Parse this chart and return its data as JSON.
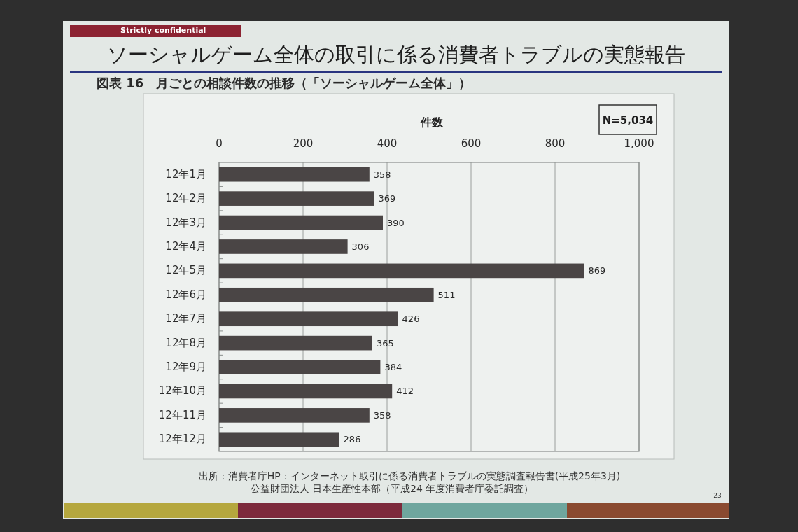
{
  "chart_data": {
    "type": "bar",
    "orientation": "horizontal",
    "title": "ソーシャルゲーム全体の取引に係る消費者トラブルの実態報告",
    "subtitle": "図表 16　月ごとの相談件数の推移（「ソーシャルゲーム全体」）",
    "xlabel": "件数",
    "categories": [
      "12年1月",
      "12年2月",
      "12年3月",
      "12年4月",
      "12年5月",
      "12年6月",
      "12年7月",
      "12年8月",
      "12年9月",
      "12年10月",
      "12年11月",
      "12年12月"
    ],
    "values": [
      358,
      369,
      390,
      306,
      869,
      511,
      426,
      365,
      384,
      412,
      358,
      286
    ],
    "color": "#4a4545",
    "xlim": [
      0,
      1000
    ],
    "xticks": [
      0,
      200,
      400,
      600,
      800,
      {
        "value": 1000,
        "label": "1,000"
      }
    ],
    "grid": "x",
    "data_labels": true,
    "annotations": [
      "Strictly confidential",
      "N=5,034",
      "出所：消費者庁HP：インターネット取引に係る消費者トラブルの実態調査報告書(平成25年3月)",
      "公益財団法人 日本生産性本部（平成24 年度消費者庁委託調査）",
      "23"
    ]
  }
}
